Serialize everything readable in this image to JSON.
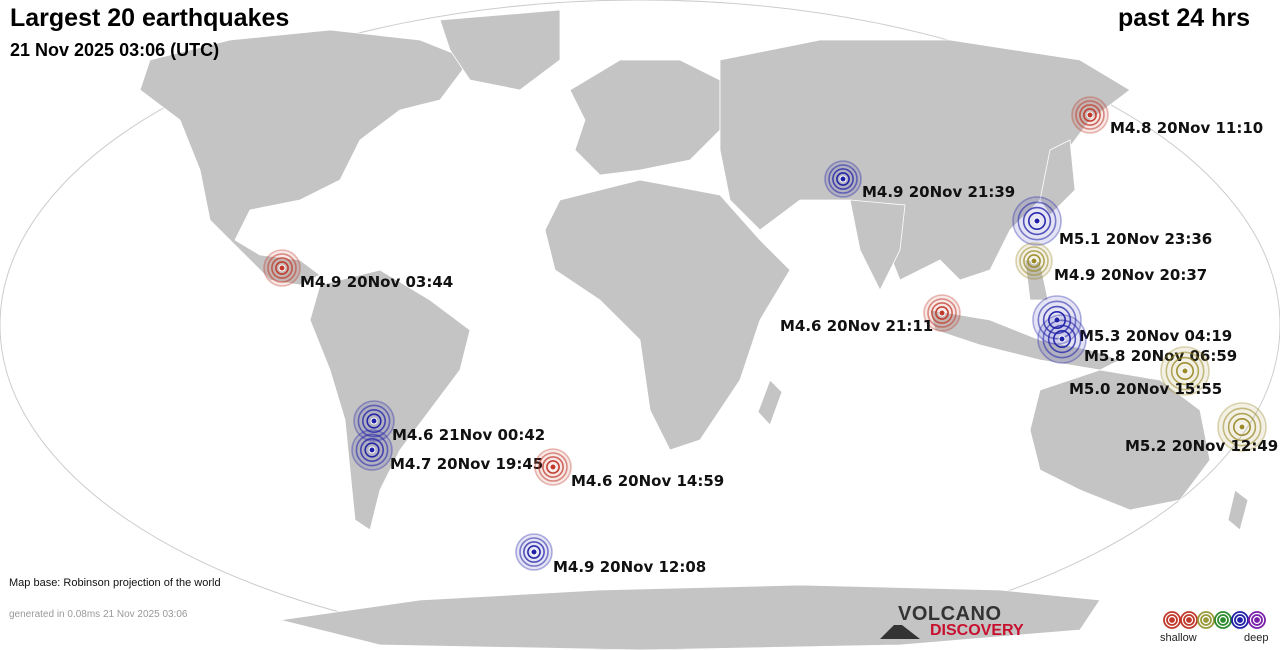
{
  "header": {
    "title": "Largest 20 earthquakes",
    "timestamp": "21 Nov 2025 03:06 (UTC)",
    "period": "past 24 hrs"
  },
  "footer": {
    "map_base": "Map base: Robinson projection of the world",
    "generated": "generated in 0.08ms 21 Nov 2025 03:06"
  },
  "logo": {
    "top": "VOLCANO",
    "bottom": "DISCOVERY"
  },
  "legend": {
    "shallow_label": "shallow",
    "deep_label": "deep",
    "colors": [
      "#c0392b",
      "#c0392b",
      "#9a9a3a",
      "#2e8b2e",
      "#1f1fa8",
      "#7a1fa8"
    ]
  },
  "colors": {
    "shallow": "#c0392b",
    "intermediate": "#9a8a2a",
    "deep": "#1f1fa8",
    "land": "#c0c0c0",
    "ocean": "#ffffff"
  },
  "earthquakes": [
    {
      "label": "M4.8 20Nov 11:10",
      "depth_class": "shallow"
    },
    {
      "label": "M4.9 20Nov 21:39",
      "depth_class": "deep"
    },
    {
      "label": "M5.1 20Nov 23:36",
      "depth_class": "deep"
    },
    {
      "label": "M4.9 20Nov 20:37",
      "depth_class": "intermediate"
    },
    {
      "label": "M4.9 20Nov 03:44",
      "depth_class": "shallow"
    },
    {
      "label": "M4.6 20Nov 21:11",
      "depth_class": "shallow"
    },
    {
      "label": "M5.3 20Nov 04:19",
      "depth_class": "deep"
    },
    {
      "label": "M5.8 20Nov 06:59",
      "depth_class": "deep"
    },
    {
      "label": "M5.0 20Nov 15:55",
      "depth_class": "intermediate"
    },
    {
      "label": "M5.2 20Nov 12:49",
      "depth_class": "intermediate"
    },
    {
      "label": "M4.6 21Nov 00:42",
      "depth_class": "deep"
    },
    {
      "label": "M4.7 20Nov 19:45",
      "depth_class": "deep"
    },
    {
      "label": "M4.6 20Nov 14:59",
      "depth_class": "shallow"
    },
    {
      "label": "M4.9 20Nov 12:08",
      "depth_class": "deep"
    }
  ]
}
